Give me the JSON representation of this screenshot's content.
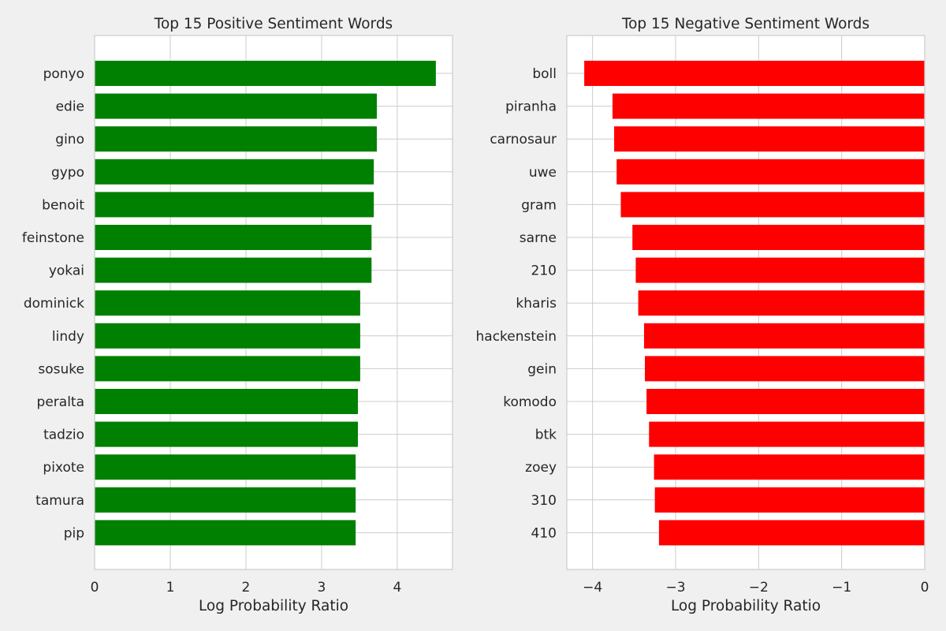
{
  "figure": {
    "background": "#f0f0f0"
  },
  "chart_data": [
    {
      "type": "bar",
      "orientation": "horizontal",
      "title": "Top 15 Positive Sentiment Words",
      "xlabel": "Log Probability Ratio",
      "ylabel": "",
      "xlim": [
        0,
        4.73
      ],
      "xticks": [
        0,
        1,
        2,
        3,
        4
      ],
      "xtick_labels": [
        "0",
        "1",
        "2",
        "3",
        "4"
      ],
      "grid": true,
      "bar_color": "#008000",
      "categories": [
        "ponyo",
        "edie",
        "gino",
        "gypo",
        "benoit",
        "feinstone",
        "yokai",
        "dominick",
        "lindy",
        "sosuke",
        "peralta",
        "tadzio",
        "pixote",
        "tamura",
        "pip"
      ],
      "values": [
        4.51,
        3.73,
        3.73,
        3.69,
        3.69,
        3.66,
        3.66,
        3.51,
        3.51,
        3.51,
        3.48,
        3.48,
        3.45,
        3.45,
        3.45
      ]
    },
    {
      "type": "bar",
      "orientation": "horizontal",
      "title": "Top 15 Negative Sentiment Words",
      "xlabel": "Log Probability Ratio",
      "ylabel": "",
      "xlim": [
        -4.31,
        0
      ],
      "xticks": [
        -4,
        -3,
        -2,
        -1,
        0
      ],
      "xtick_labels": [
        "−4",
        "−3",
        "−2",
        "−1",
        "0"
      ],
      "grid": true,
      "bar_color": "#ff0000",
      "categories": [
        "boll",
        "piranha",
        "carnosaur",
        "uwe",
        "gram",
        "sarne",
        "210",
        "kharis",
        "hackenstein",
        "gein",
        "komodo",
        "btk",
        "zoey",
        "310",
        "410"
      ],
      "values": [
        -4.1,
        -3.76,
        -3.74,
        -3.71,
        -3.66,
        -3.52,
        -3.48,
        -3.45,
        -3.38,
        -3.37,
        -3.35,
        -3.32,
        -3.26,
        -3.25,
        -3.2
      ]
    }
  ]
}
